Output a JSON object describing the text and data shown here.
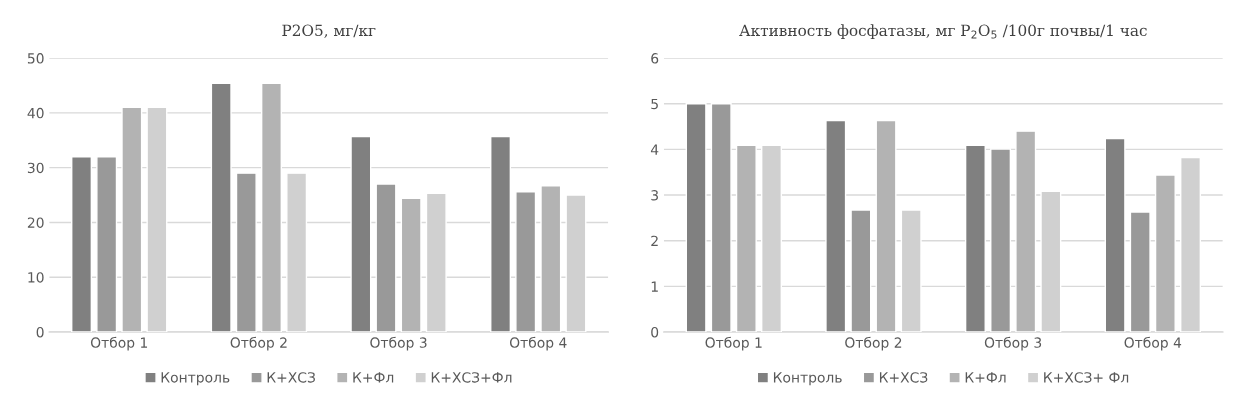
{
  "chart_data": [
    {
      "type": "bar",
      "title": "P2O5, мг/кг",
      "categories": [
        "Отбор 1",
        "Отбор 2",
        "Отбор 3",
        "Отбор 4"
      ],
      "series": [
        {
          "name": "Контроль",
          "color": "#808080",
          "values": [
            32,
            45.4,
            35.7,
            35.7
          ]
        },
        {
          "name": "К+ХСЗ",
          "color": "#999999",
          "values": [
            32,
            29,
            27,
            25.6
          ]
        },
        {
          "name": "К+Фл",
          "color": "#b3b3b3",
          "values": [
            41,
            45.4,
            24.4,
            26.7
          ]
        },
        {
          "name": "К+ХСЗ+Фл",
          "color": "#d0d0d0",
          "values": [
            41,
            29,
            25.3,
            25
          ]
        }
      ],
      "ylim": [
        0,
        50
      ],
      "yticks": [
        0,
        10,
        20,
        30,
        40,
        50
      ],
      "grid": "y",
      "legend": "bottom"
    },
    {
      "type": "bar",
      "title": "Активность фосфатазы, мг P$_{2}$O$_{5}$ /100г почвы/1 час",
      "categories": [
        "Отбор 1",
        "Отбор 2",
        "Отбор 3",
        "Отбор 4"
      ],
      "series": [
        {
          "name": "Контроль",
          "color": "#808080",
          "values": [
            5.0,
            4.63,
            4.09,
            4.24
          ]
        },
        {
          "name": "К+ХСЗ",
          "color": "#999999",
          "values": [
            5.0,
            2.67,
            4.01,
            2.63
          ]
        },
        {
          "name": "К+Фл",
          "color": "#b3b3b3",
          "values": [
            4.09,
            4.63,
            4.4,
            3.44
          ]
        },
        {
          "name": "К+ХСЗ+ Фл",
          "color": "#d0d0d0",
          "values": [
            4.09,
            2.67,
            3.08,
            3.82
          ]
        }
      ],
      "ylim": [
        0,
        6
      ],
      "yticks": [
        0,
        1,
        2,
        3,
        4,
        5,
        6
      ],
      "grid": "y",
      "legend": "bottom"
    }
  ]
}
